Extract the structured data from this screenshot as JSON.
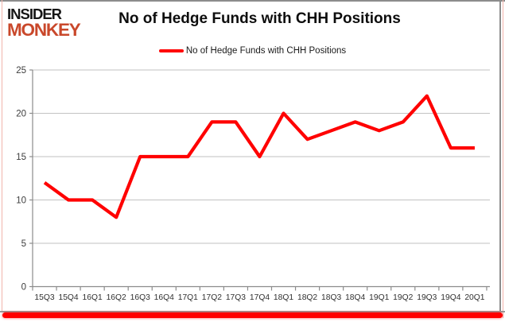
{
  "logo": {
    "line1": "INSIDER",
    "line2": "MONKEY"
  },
  "header": {
    "title": "No of Hedge Funds with CHH Positions"
  },
  "legend": {
    "label": "No of Hedge Funds with CHH Positions"
  },
  "colors": {
    "line": "#ff0000",
    "logo_accent": "#c9482b",
    "logo_dark": "#161616",
    "grid": "#c2c2c2",
    "axis": "#8b8b8b",
    "bottom_bar": "#ff0000",
    "border_gray": "#8c8c8c",
    "border_pink": "#f2b4ac"
  },
  "chart_data": {
    "type": "line",
    "title": "No of Hedge Funds with CHH Positions",
    "categories": [
      "15Q3",
      "15Q4",
      "16Q1",
      "16Q2",
      "16Q3",
      "16Q4",
      "17Q1",
      "17Q2",
      "17Q3",
      "17Q4",
      "18Q1",
      "18Q2",
      "18Q3",
      "18Q4",
      "19Q1",
      "19Q2",
      "19Q3",
      "19Q4",
      "20Q1"
    ],
    "series": [
      {
        "name": "No of Hedge Funds with CHH Positions",
        "values": [
          12,
          10,
          10,
          8,
          15,
          15,
          15,
          19,
          19,
          15,
          20,
          17,
          18,
          19,
          18,
          19,
          22,
          16,
          16
        ]
      }
    ],
    "xlabel": "",
    "ylabel": "",
    "ylim": [
      0,
      25
    ],
    "yticks": [
      0,
      5,
      10,
      15,
      20,
      25
    ],
    "grid": true,
    "legend_position": "top-center"
  }
}
